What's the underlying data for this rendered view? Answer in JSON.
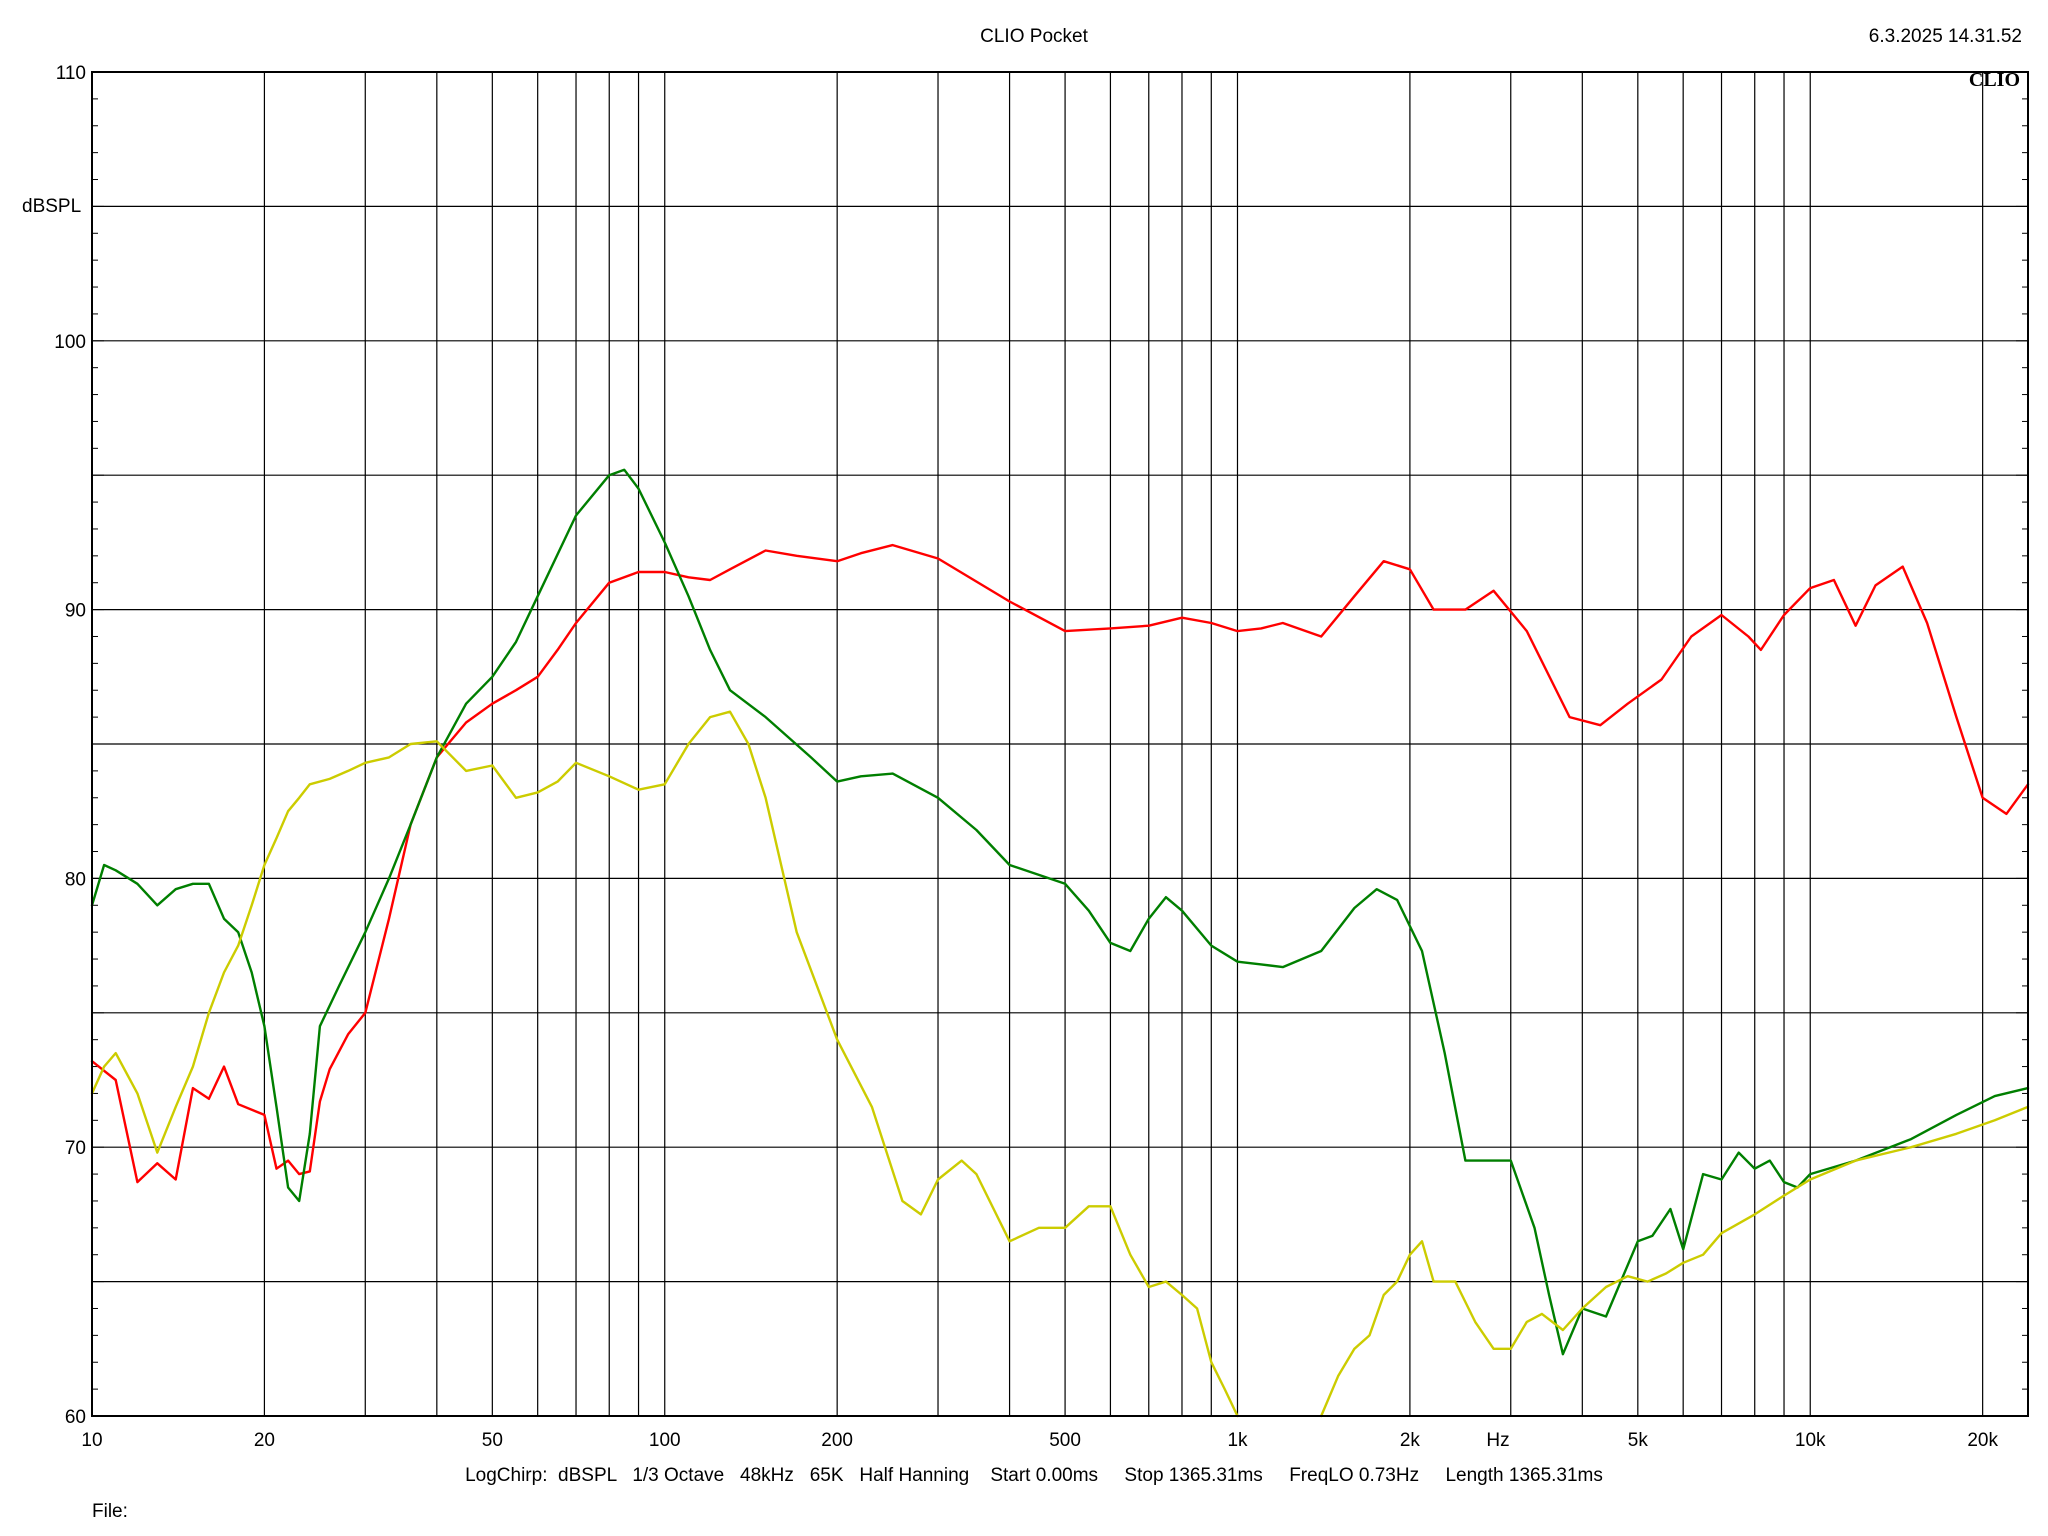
{
  "header": {
    "title": "CLIO Pocket",
    "timestamp": "6.3.2025 14.31.52",
    "logo": "CLIO"
  },
  "footer": {
    "settings": "LogChirp:  dBSPL   1/3 Octave   48kHz   65K   Half Hanning    Start 0.00ms     Stop 1365.31ms     FreqLO 0.73Hz     Length 1365.31ms",
    "file_label": "File:"
  },
  "chart_data": {
    "type": "line",
    "title": "CLIO Pocket",
    "xlabel": "Hz",
    "ylabel": "dBSPL",
    "x_scale": "log",
    "xlim": [
      10,
      24000
    ],
    "ylim": [
      60,
      110
    ],
    "grid": true,
    "x_ticks": [
      10,
      20,
      50,
      100,
      200,
      500,
      1000,
      2000,
      5000,
      10000,
      20000
    ],
    "x_tick_labels": [
      "10",
      "20",
      "50",
      "100",
      "200",
      "500",
      "1k",
      "2k",
      "5k",
      "10k",
      "20k"
    ],
    "y_ticks": [
      60,
      70,
      80,
      90,
      100,
      110
    ],
    "y_tick_labels": [
      "60",
      "70",
      "80",
      "90",
      "100",
      "110"
    ],
    "series": [
      {
        "color": "#ff0000",
        "x": [
          10,
          11,
          12,
          13,
          14,
          15,
          16,
          17,
          18,
          20,
          21,
          22,
          23,
          24,
          25,
          26,
          28,
          30,
          33,
          36,
          40,
          45,
          50,
          55,
          60,
          65,
          70,
          80,
          90,
          100,
          110,
          120,
          130,
          150,
          170,
          200,
          220,
          250,
          300,
          400,
          500,
          600,
          700,
          800,
          900,
          1000,
          1100,
          1200,
          1400,
          1600,
          1800,
          2000,
          2200,
          2500,
          2800,
          3200,
          3800,
          4300,
          4800,
          5500,
          6200,
          7000,
          7800,
          8200,
          9000,
          10000,
          11000,
          12000,
          13000,
          14500,
          16000,
          18000,
          20000,
          22000,
          24000
        ],
        "values": [
          73.2,
          72.5,
          68.7,
          69.4,
          68.8,
          72.2,
          71.8,
          73.0,
          71.6,
          71.2,
          69.2,
          69.5,
          69.0,
          69.1,
          71.7,
          72.9,
          74.2,
          75.0,
          78.5,
          82.0,
          84.5,
          85.8,
          86.5,
          87.0,
          87.5,
          88.5,
          89.5,
          91.0,
          91.4,
          91.4,
          91.2,
          91.1,
          91.5,
          92.2,
          92.0,
          91.8,
          92.1,
          92.4,
          91.9,
          90.3,
          89.2,
          89.3,
          89.4,
          89.7,
          89.5,
          89.2,
          89.3,
          89.5,
          89.0,
          90.5,
          91.8,
          91.5,
          90.0,
          90.0,
          90.7,
          89.2,
          86.0,
          85.7,
          86.5,
          87.4,
          89.0,
          89.8,
          89.0,
          88.5,
          89.8,
          90.8,
          91.1,
          89.4,
          90.9,
          91.6,
          89.5,
          86.0,
          83.0,
          82.4,
          83.5
        ]
      },
      {
        "color": "#007f00",
        "x": [
          10,
          10.5,
          11,
          12,
          13,
          14,
          15,
          16,
          17,
          18,
          19,
          20,
          21,
          22,
          23,
          24,
          25,
          27,
          30,
          33,
          36,
          40,
          45,
          50,
          55,
          60,
          70,
          80,
          85,
          90,
          100,
          110,
          120,
          130,
          150,
          180,
          200,
          220,
          250,
          300,
          350,
          400,
          500,
          550,
          600,
          650,
          700,
          750,
          800,
          900,
          1000,
          1100,
          1200,
          1400,
          1600,
          1750,
          1900,
          2100,
          2300,
          2500,
          2700,
          3000,
          3300,
          3500,
          3700,
          4000,
          4400,
          5000,
          5300,
          5700,
          6000,
          6500,
          7000,
          7500,
          8000,
          8500,
          9000,
          9500,
          10000,
          12000,
          15000,
          18000,
          21000,
          24000
        ],
        "values": [
          79.0,
          80.5,
          80.3,
          79.8,
          79.0,
          79.6,
          79.8,
          79.8,
          78.5,
          78.0,
          76.5,
          74.5,
          71.5,
          68.5,
          68.0,
          70.5,
          74.5,
          76.0,
          78.0,
          80.0,
          82.0,
          84.5,
          86.5,
          87.5,
          88.8,
          90.5,
          93.5,
          95.0,
          95.2,
          94.5,
          92.5,
          90.5,
          88.5,
          87.0,
          86.0,
          84.5,
          83.6,
          83.8,
          83.9,
          83.0,
          81.8,
          80.5,
          79.8,
          78.8,
          77.6,
          77.3,
          78.5,
          79.3,
          78.8,
          77.5,
          76.9,
          76.8,
          76.7,
          77.3,
          78.9,
          79.6,
          79.2,
          77.3,
          73.5,
          69.5,
          69.5,
          69.5,
          67.0,
          64.5,
          62.3,
          64.0,
          63.7,
          66.5,
          66.7,
          67.7,
          66.2,
          69.0,
          68.8,
          69.8,
          69.2,
          69.5,
          68.7,
          68.5,
          69.0,
          69.5,
          70.3,
          71.2,
          71.9,
          72.2
        ]
      },
      {
        "color": "#cccc00",
        "x": [
          10,
          10.5,
          11,
          12,
          13,
          14,
          15,
          16,
          17,
          18,
          19,
          20,
          21,
          22,
          23,
          24,
          26,
          28,
          30,
          33,
          36,
          40,
          45,
          50,
          55,
          60,
          65,
          70,
          80,
          90,
          100,
          110,
          120,
          130,
          140,
          150,
          170,
          200,
          230,
          260,
          280,
          300,
          330,
          350,
          400,
          450,
          500,
          550,
          600,
          650,
          700,
          750,
          800,
          850,
          900,
          950,
          1000
        ],
        "values": [
          72.0,
          73.0,
          73.5,
          72.0,
          69.8,
          71.5,
          73.0,
          75.0,
          76.5,
          77.5,
          79.0,
          80.5,
          81.5,
          82.5,
          83.0,
          83.5,
          83.7,
          84.0,
          84.3,
          84.5,
          85.0,
          85.1,
          84.0,
          84.2,
          83.0,
          83.2,
          83.6,
          84.3,
          83.8,
          83.3,
          83.5,
          85.0,
          86.0,
          86.2,
          85.0,
          83.0,
          78.0,
          74.0,
          71.5,
          68.0,
          67.5,
          68.8,
          69.5,
          69.0,
          66.5,
          67.0,
          67.0,
          67.8,
          67.8,
          66.0,
          64.8,
          65.0,
          64.5,
          64.0,
          62.0,
          61.0,
          60.0
        ]
      },
      {
        "color": "#cccc00",
        "x": [
          1400,
          1500,
          1600,
          1700,
          1800,
          1900,
          2000,
          2100,
          2200,
          2400,
          2600,
          2800,
          3000,
          3200,
          3400,
          3700,
          4000,
          4400,
          4800,
          5200,
          5600,
          6000,
          6500,
          7000,
          8000,
          9000,
          10000,
          12000,
          15000,
          18000,
          21000,
          24000
        ],
        "values": [
          60.0,
          61.5,
          62.5,
          63.0,
          64.5,
          65.0,
          66.0,
          66.5,
          65.0,
          65.0,
          63.5,
          62.5,
          62.5,
          63.5,
          63.8,
          63.2,
          64.0,
          64.8,
          65.2,
          65.0,
          65.3,
          65.7,
          66.0,
          66.8,
          67.5,
          68.2,
          68.8,
          69.5,
          70.0,
          70.5,
          71.0,
          71.5
        ]
      }
    ]
  }
}
